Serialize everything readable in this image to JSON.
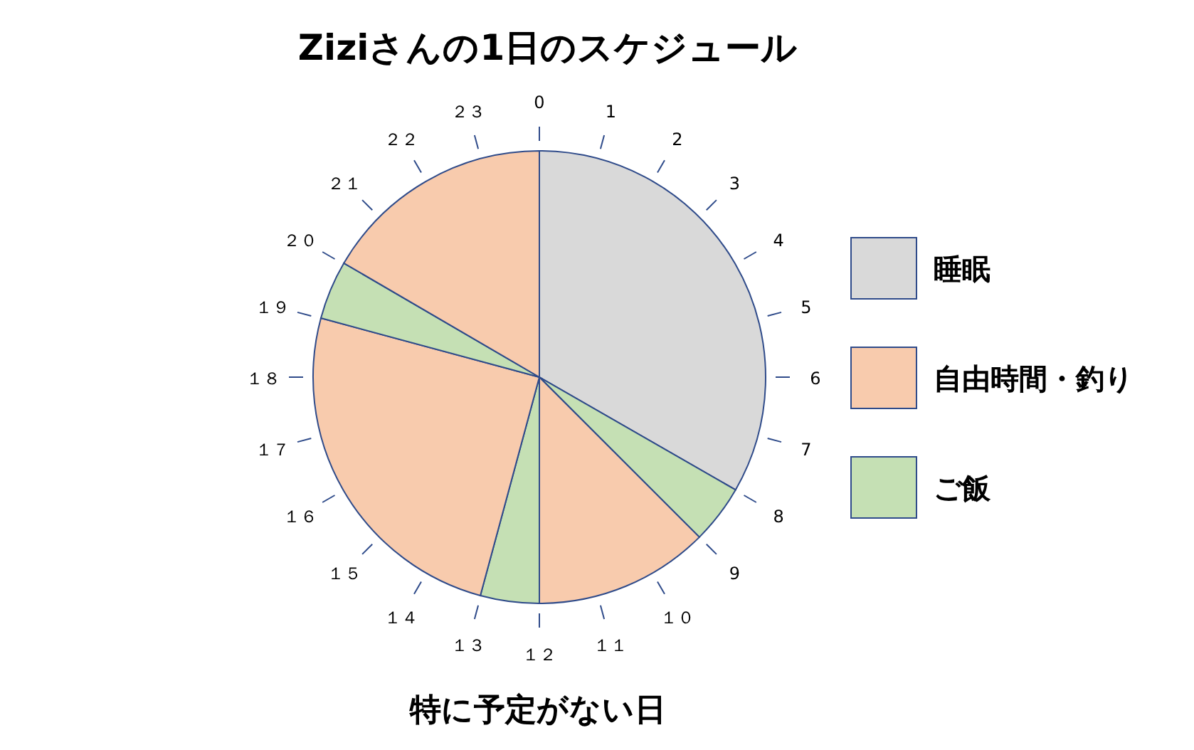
{
  "chart_data": {
    "type": "pie",
    "title": "Ziziさんの1日のスケジュール",
    "categories": [
      "睡眠",
      null,
      "自由時間・釣り",
      "ご飯",
      null,
      null,
      null
    ],
    "values": [
      33.3,
      4.2,
      12.5,
      4.2,
      25,
      4.2,
      16.6
    ],
    "colors": [
      "#d9d9d9",
      "#c5e0b4",
      "#f8cbad",
      "#c5e0b4",
      "#f8cbad",
      "#c5e0b4",
      "#f8cbad"
    ],
    "legend": "right",
    "annotations": [
      "0",
      "1",
      "2",
      "3",
      "4",
      "5",
      "6",
      "7",
      "8",
      "9",
      "１０",
      "１１",
      "１２",
      "１３",
      "１４",
      "１５",
      "１６",
      "１７",
      "１８",
      "１９",
      "２０",
      "２１",
      "２２",
      "２３",
      "特に予定がない日"
    ]
  }
}
